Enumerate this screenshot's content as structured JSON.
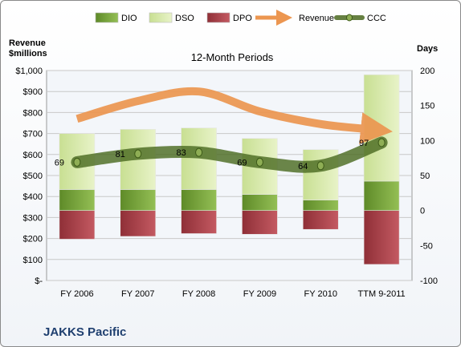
{
  "chart_data": {
    "type": "bar",
    "title": "12-Month Periods",
    "footer": "JAKKS Pacific",
    "categories": [
      "FY 2006",
      "FY 2007",
      "FY 2008",
      "FY 2009",
      "FY 2010",
      "TTM 9-2011"
    ],
    "left_axis": {
      "label_line1": "Revenue",
      "label_line2": "$millions",
      "ylim": [
        0,
        1000
      ],
      "ticks": [
        {
          "value": 0,
          "label": "$-"
        },
        {
          "value": 100,
          "label": "$100"
        },
        {
          "value": 200,
          "label": "$200"
        },
        {
          "value": 300,
          "label": "$300"
        },
        {
          "value": 400,
          "label": "$400"
        },
        {
          "value": 500,
          "label": "$500"
        },
        {
          "value": 600,
          "label": "$600"
        },
        {
          "value": 700,
          "label": "$700"
        },
        {
          "value": 800,
          "label": "$800"
        },
        {
          "value": 900,
          "label": "$900"
        },
        {
          "value": 1000,
          "label": "$1,000"
        }
      ]
    },
    "right_axis": {
      "label": "Days",
      "ylim": [
        -100,
        200
      ],
      "ticks": [
        -100,
        -50,
        0,
        50,
        100,
        150,
        200
      ]
    },
    "grid": true,
    "legend_position": "top",
    "legend": [
      {
        "key": "dio",
        "label": "DIO"
      },
      {
        "key": "dso",
        "label": "DSO"
      },
      {
        "key": "dpo",
        "label": "DPO"
      },
      {
        "key": "revenue",
        "label": "Revenue"
      },
      {
        "key": "ccc",
        "label": "CCC"
      }
    ],
    "series": [
      {
        "name": "DIO",
        "axis": "right",
        "values": [
          30,
          30,
          30,
          23,
          15,
          42
        ]
      },
      {
        "name": "DSO",
        "axis": "right",
        "values": [
          80,
          86,
          88,
          80,
          72,
          152
        ]
      },
      {
        "name": "DPO",
        "axis": "right",
        "values": [
          -41,
          -37,
          -33,
          -34,
          -27,
          -77
        ]
      },
      {
        "name": "CCC",
        "axis": "right",
        "values": [
          69,
          81,
          83,
          69,
          64,
          97
        ],
        "data_labels": [
          "69",
          "81",
          "83",
          "69",
          "64",
          "97"
        ]
      },
      {
        "name": "Revenue",
        "axis": "left",
        "values": [
          770,
          855,
          900,
          805,
          745,
          720
        ]
      }
    ],
    "colors": {
      "dio": "#77a13a",
      "dso": "#d6e8a8",
      "dpo": "#b0404a",
      "revenue": "#ec9650",
      "ccc": "#4c6b22",
      "grid": "#c8c8c8",
      "plot_bg": "#f3f6fa",
      "company": "#1f3f6f"
    }
  }
}
